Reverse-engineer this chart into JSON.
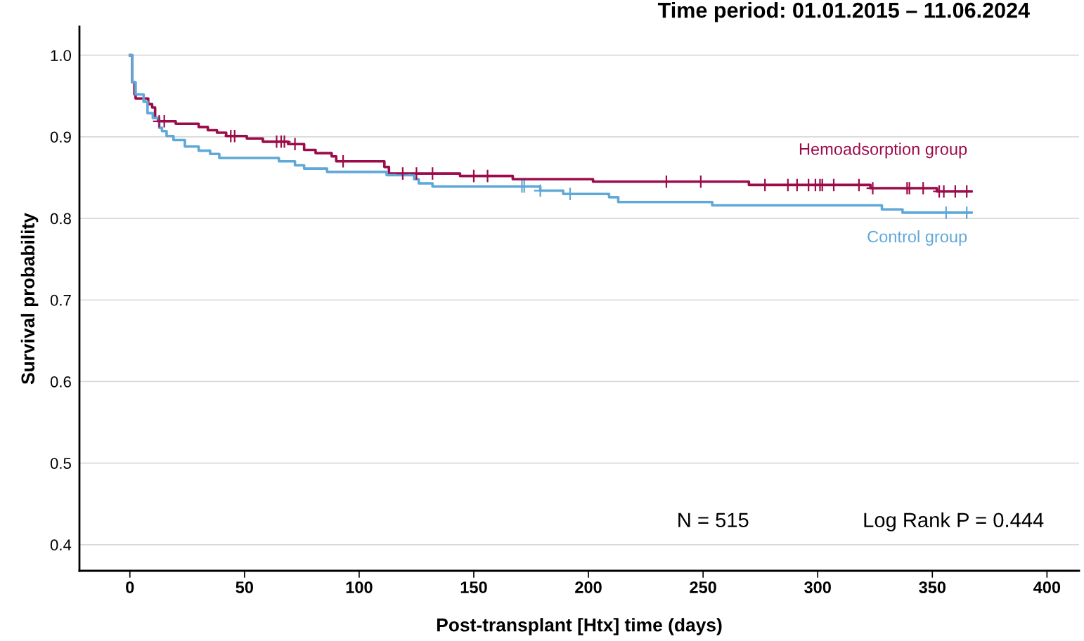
{
  "chart_data": {
    "type": "step",
    "title": "Time period: 01.01.2015 – 11.06.2024",
    "xlabel": "Post-transplant [Htx] time (days)",
    "ylabel": "Survival probability",
    "xlim": [
      -22,
      414
    ],
    "ylim": [
      0.368,
      1.035
    ],
    "xticks": [
      0,
      50,
      100,
      150,
      200,
      250,
      300,
      350,
      400
    ],
    "yticks": [
      0.4,
      0.5,
      0.6,
      0.7,
      0.8,
      0.9,
      {
        "value": 1,
        "label": "1.0"
      }
    ],
    "grid": "y",
    "legend": false,
    "annotations": [
      "N = 515",
      "Log Rank P = 0.444"
    ],
    "series": [
      {
        "name": "Hemoadsorption group",
        "color": "#9c0c4a",
        "x": [
          0,
          1,
          2,
          2.5,
          8,
          9.7,
          11,
          12.3,
          20,
          30,
          34,
          38,
          42,
          51,
          58,
          69,
          76,
          81,
          88,
          90,
          111,
          113,
          144,
          167,
          202,
          270,
          323,
          352,
          367
        ],
        "values": [
          1.0,
          0.967,
          0.952,
          0.947,
          0.94,
          0.936,
          0.923,
          0.919,
          0.916,
          0.912,
          0.908,
          0.905,
          0.901,
          0.898,
          0.894,
          0.891,
          0.884,
          0.88,
          0.876,
          0.87,
          0.863,
          0.855,
          0.852,
          0.848,
          0.845,
          0.841,
          0.837,
          0.833,
          0.833
        ]
      },
      {
        "name": "Control group",
        "color": "#5fa8d8",
        "x": [
          0,
          1,
          2.5,
          6,
          7.7,
          10,
          12.8,
          14,
          16,
          19,
          24,
          30,
          35,
          39,
          65,
          72,
          76,
          86,
          112,
          124,
          126,
          132,
          179,
          189,
          209,
          213,
          254,
          328,
          337,
          367
        ],
        "values": [
          1.0,
          0.967,
          0.952,
          0.943,
          0.929,
          0.923,
          0.911,
          0.907,
          0.901,
          0.896,
          0.888,
          0.883,
          0.879,
          0.874,
          0.87,
          0.865,
          0.861,
          0.857,
          0.853,
          0.848,
          0.843,
          0.839,
          0.834,
          0.83,
          0.826,
          0.82,
          0.816,
          0.811,
          0.807,
          0.807
        ]
      },
      {
        "type": "scatter",
        "marker": "cross",
        "color": "#9c0c4a",
        "x": [
          12.8,
          15,
          44,
          45.7,
          64,
          66,
          67.4,
          72,
          93,
          119,
          125,
          132,
          150,
          156,
          234,
          249,
          277,
          287,
          291,
          296,
          299,
          301,
          302,
          307,
          318,
          324,
          339,
          340,
          346,
          353,
          355,
          360,
          365
        ],
        "values": [
          0.919,
          0.919,
          0.901,
          0.901,
          0.894,
          0.894,
          0.894,
          0.891,
          0.87,
          0.855,
          0.855,
          0.855,
          0.852,
          0.852,
          0.845,
          0.845,
          0.841,
          0.841,
          0.841,
          0.841,
          0.841,
          0.841,
          0.841,
          0.841,
          0.841,
          0.837,
          0.837,
          0.837,
          0.837,
          0.833,
          0.833,
          0.833,
          0.833
        ]
      },
      {
        "type": "scatter",
        "marker": "cross",
        "color": "#5fa8d8",
        "x": [
          171,
          172,
          179,
          192,
          356,
          365
        ],
        "values": [
          0.839,
          0.839,
          0.834,
          0.83,
          0.807,
          0.807
        ]
      }
    ]
  }
}
